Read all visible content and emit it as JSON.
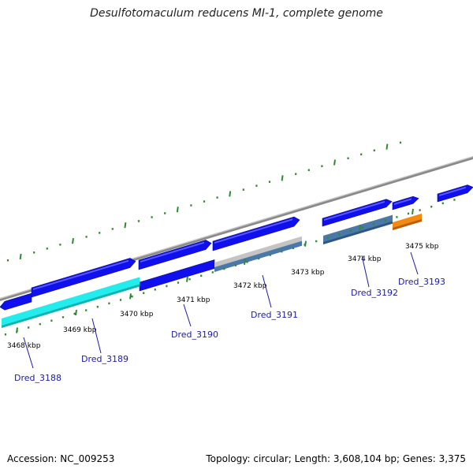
{
  "title": "Desulfotomaculum reducens MI-1, complete genome",
  "footer": {
    "accession": "Accession: NC_009253",
    "summary": "Topology: circular; Length: 3,608,104 bp; Genes: 3,375"
  },
  "colors": {
    "forward_gene": "#1010ee",
    "reverse_gene": "#1010ee",
    "axis": "#8a8a8a",
    "ticks": "#2f8a2f",
    "gene_label": "#1a1aa8",
    "highlight_cyan": "#22ecec",
    "highlight_steel": "#4a78a8",
    "highlight_gray": "#c4c4c4",
    "highlight_orange": "#f58a12"
  },
  "scale": {
    "major_tick_labels": [
      "3468 kbp",
      "3469 kbp",
      "3470 kbp",
      "3471 kbp",
      "3472 kbp",
      "3473 kbp",
      "3474 kbp",
      "3475 kbp"
    ],
    "major_tick_kb": [
      3468,
      3469,
      3470,
      3471,
      3472,
      3473,
      3474,
      3475
    ]
  },
  "gene_labels": [
    "Dred_3188",
    "Dred_3189",
    "Dred_3190",
    "Dred_3191",
    "Dred_3192",
    "Dred_3193"
  ]
}
